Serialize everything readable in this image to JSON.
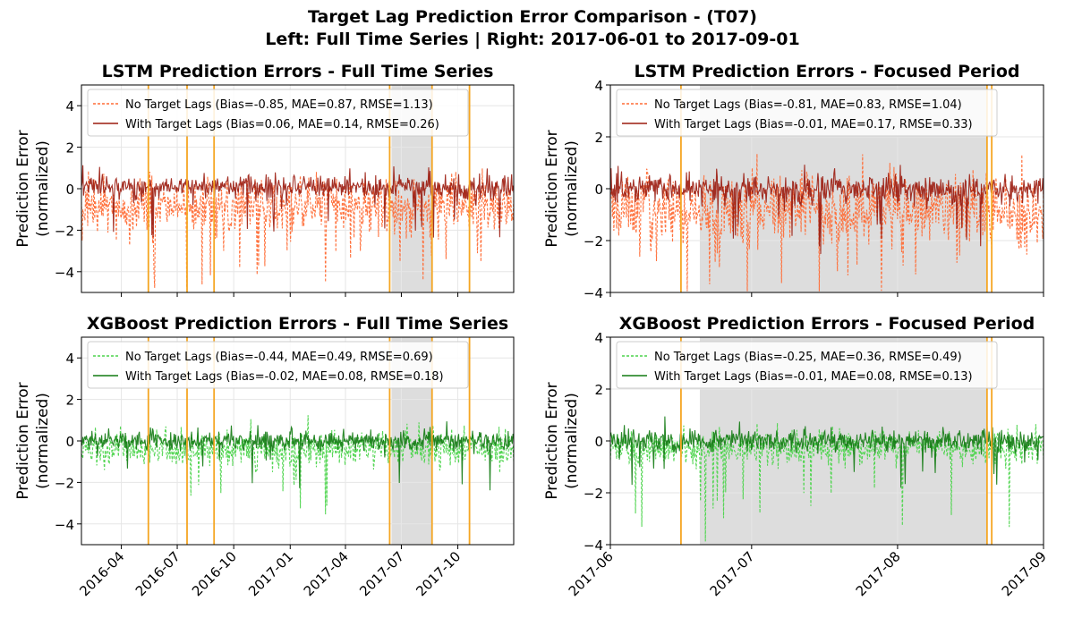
{
  "suptitle": {
    "line1": "Target Lag Prediction Error Comparison - (T07)",
    "line2": "Left: Full Time Series | Right: 2017-06-01 to 2017-09-01"
  },
  "colors": {
    "lstm_no_lags": "#ff6b35",
    "lstm_with_lags": "#9b1b0e",
    "xgb_no_lags": "#4cd44c",
    "xgb_with_lags": "#117a11",
    "event_lines": "#f5a623",
    "shade": "#dddddd",
    "grid": "#e6e6e6"
  },
  "chart_data": [
    {
      "id": "lstm-full",
      "type": "line",
      "title": "LSTM Prediction Errors - Full Time Series",
      "ylabel_line1": "Prediction Error",
      "ylabel_line2": "(normalized)",
      "xlabel": "",
      "x_range": [
        "2016-01-27",
        "2017-12-31"
      ],
      "ylim": [
        -5,
        5
      ],
      "yticks": [
        -4,
        -2,
        0,
        2,
        4
      ],
      "xticks": [
        {
          "date": "2016-04-01",
          "label": "2016-04"
        },
        {
          "date": "2016-07-01",
          "label": "2016-07"
        },
        {
          "date": "2016-10-01",
          "label": "2016-10"
        },
        {
          "date": "2017-01-01",
          "label": "2017-01"
        },
        {
          "date": "2017-04-01",
          "label": "2017-04"
        },
        {
          "date": "2017-07-01",
          "label": "2017-07"
        },
        {
          "date": "2017-10-01",
          "label": "2017-10"
        }
      ],
      "show_xtick_labels": false,
      "grid": true,
      "legend_placement": "upper-left",
      "shaded_range": [
        "2017-06-15",
        "2017-08-20"
      ],
      "event_lines": [
        "2016-05-15",
        "2016-07-17",
        "2016-08-30",
        "2017-06-12",
        "2017-08-20",
        "2017-10-20"
      ],
      "series": [
        {
          "name": "No Target Lags (Bias=-0.85, MAE=0.87, RMSE=1.13)",
          "style": "dashed",
          "color_key": "lstm_no_lags",
          "bias": -0.85,
          "mae": 0.87,
          "rmse": 1.13
        },
        {
          "name": "With Target Lags (Bias=0.06, MAE=0.14, RMSE=0.26)",
          "style": "solid",
          "color_key": "lstm_with_lags",
          "bias": 0.06,
          "mae": 0.14,
          "rmse": 0.26
        }
      ]
    },
    {
      "id": "lstm-focused",
      "type": "line",
      "title": "LSTM Prediction Errors - Focused Period",
      "ylabel_line1": "Prediction Error",
      "ylabel_line2": "(normalized)",
      "xlabel": "",
      "x_range": [
        "2017-06-01",
        "2017-09-01"
      ],
      "ylim": [
        -4,
        4
      ],
      "yticks": [
        -4,
        -2,
        0,
        2,
        4
      ],
      "xticks": [
        {
          "date": "2017-06-01",
          "label": "2017-06"
        },
        {
          "date": "2017-07-01",
          "label": "2017-07"
        },
        {
          "date": "2017-08-01",
          "label": "2017-08"
        },
        {
          "date": "2017-09-01",
          "label": "2017-09"
        }
      ],
      "show_xtick_labels": false,
      "grid": true,
      "legend_placement": "upper-left",
      "shaded_range": [
        "2017-06-20",
        "2017-08-20"
      ],
      "event_lines": [
        "2017-06-16",
        "2017-08-20",
        "2017-08-21"
      ],
      "series": [
        {
          "name": "No Target Lags (Bias=-0.81, MAE=0.83, RMSE=1.04)",
          "style": "dashed",
          "color_key": "lstm_no_lags",
          "bias": -0.81,
          "mae": 0.83,
          "rmse": 1.04
        },
        {
          "name": "With Target Lags (Bias=-0.01, MAE=0.17, RMSE=0.33)",
          "style": "solid",
          "color_key": "lstm_with_lags",
          "bias": -0.01,
          "mae": 0.17,
          "rmse": 0.33
        }
      ]
    },
    {
      "id": "xgb-full",
      "type": "line",
      "title": "XGBoost Prediction Errors - Full Time Series",
      "ylabel_line1": "Prediction Error",
      "ylabel_line2": "(normalized)",
      "xlabel": "",
      "x_range": [
        "2016-01-27",
        "2017-12-31"
      ],
      "ylim": [
        -5,
        5
      ],
      "yticks": [
        -4,
        -2,
        0,
        2,
        4
      ],
      "xticks": [
        {
          "date": "2016-04-01",
          "label": "2016-04"
        },
        {
          "date": "2016-07-01",
          "label": "2016-07"
        },
        {
          "date": "2016-10-01",
          "label": "2016-10"
        },
        {
          "date": "2017-01-01",
          "label": "2017-01"
        },
        {
          "date": "2017-04-01",
          "label": "2017-04"
        },
        {
          "date": "2017-07-01",
          "label": "2017-07"
        },
        {
          "date": "2017-10-01",
          "label": "2017-10"
        }
      ],
      "show_xtick_labels": true,
      "grid": true,
      "legend_placement": "upper-left",
      "shaded_range": [
        "2017-06-15",
        "2017-08-20"
      ],
      "event_lines": [
        "2016-05-15",
        "2016-07-17",
        "2016-08-30",
        "2017-06-12",
        "2017-08-20",
        "2017-10-20"
      ],
      "series": [
        {
          "name": "No Target Lags (Bias=-0.44, MAE=0.49, RMSE=0.69)",
          "style": "dashed",
          "color_key": "xgb_no_lags",
          "bias": -0.44,
          "mae": 0.49,
          "rmse": 0.69
        },
        {
          "name": "With Target Lags (Bias=-0.02, MAE=0.08, RMSE=0.18)",
          "style": "solid",
          "color_key": "xgb_with_lags",
          "bias": -0.02,
          "mae": 0.08,
          "rmse": 0.18
        }
      ]
    },
    {
      "id": "xgb-focused",
      "type": "line",
      "title": "XGBoost Prediction Errors - Focused Period",
      "ylabel_line1": "Prediction Error",
      "ylabel_line2": "(normalized)",
      "xlabel": "",
      "x_range": [
        "2017-06-01",
        "2017-09-01"
      ],
      "ylim": [
        -4,
        4
      ],
      "yticks": [
        -4,
        -2,
        0,
        2,
        4
      ],
      "xticks": [
        {
          "date": "2017-06-01",
          "label": "2017-06"
        },
        {
          "date": "2017-07-01",
          "label": "2017-07"
        },
        {
          "date": "2017-08-01",
          "label": "2017-08"
        },
        {
          "date": "2017-09-01",
          "label": "2017-09"
        }
      ],
      "show_xtick_labels": true,
      "grid": true,
      "legend_placement": "upper-left",
      "shaded_range": [
        "2017-06-20",
        "2017-08-20"
      ],
      "event_lines": [
        "2017-06-16",
        "2017-08-20",
        "2017-08-21"
      ],
      "series": [
        {
          "name": "No Target Lags (Bias=-0.25, MAE=0.36, RMSE=0.49)",
          "style": "dashed",
          "color_key": "xgb_no_lags",
          "bias": -0.25,
          "mae": 0.36,
          "rmse": 0.49
        },
        {
          "name": "With Target Lags (Bias=-0.01, MAE=0.08, RMSE=0.13)",
          "style": "solid",
          "color_key": "xgb_with_lags",
          "bias": -0.01,
          "mae": 0.08,
          "rmse": 0.13
        }
      ]
    }
  ]
}
